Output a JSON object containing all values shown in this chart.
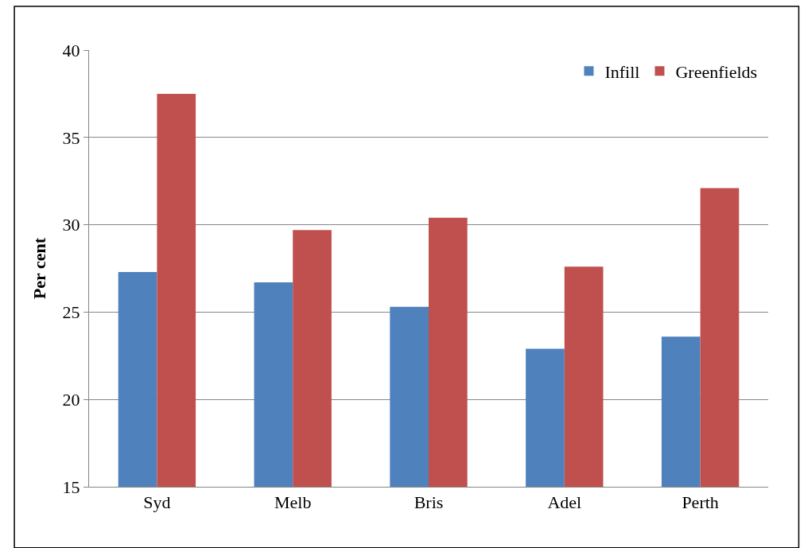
{
  "chart_data": {
    "type": "bar",
    "ylabel": "Per cent",
    "categories": [
      "Syd",
      "Melb",
      "Bris",
      "Adel",
      "Perth"
    ],
    "series": [
      {
        "name": "Infill",
        "color": "#4f81bd",
        "values": [
          27.3,
          26.7,
          25.3,
          22.9,
          23.6
        ]
      },
      {
        "name": "Greenfields",
        "color": "#c0504d",
        "values": [
          37.5,
          29.7,
          30.4,
          27.6,
          32.1
        ]
      }
    ],
    "ylim": [
      15,
      40
    ],
    "yticks": [
      15,
      20,
      25,
      30,
      35,
      40
    ],
    "grid": "y",
    "legend": "top right"
  }
}
